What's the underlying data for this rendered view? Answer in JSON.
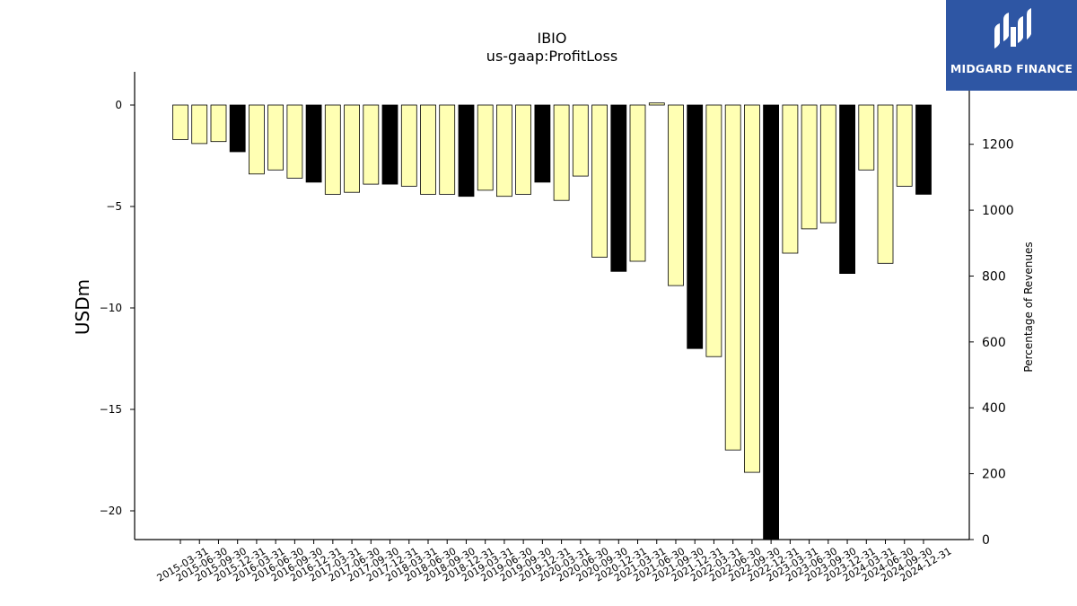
{
  "brand": {
    "name": "MIDGARD FINANCE",
    "color": "#2e56a4"
  },
  "chart_data": {
    "type": "bar",
    "title": "IBIO",
    "subtitle": "us-gaap:ProfitLoss",
    "ylabel": "USDm",
    "y2label": "Percentage of Revenues",
    "ylim": [
      -21.4,
      1.6
    ],
    "y2lim": [
      0,
      1420
    ],
    "yticks": [
      0,
      -5,
      -10,
      -15,
      -20
    ],
    "y2ticks": [
      0,
      200,
      400,
      600,
      800,
      1000,
      1200
    ],
    "colors": {
      "quarter": "#ffffb3",
      "year_end": "#000000",
      "edge": "#000000"
    },
    "categories": [
      "2015-03-31",
      "2015-06-30",
      "2015-09-30",
      "2015-12-31",
      "2016-03-31",
      "2016-06-30",
      "2016-09-30",
      "2016-12-31",
      "2017-03-31",
      "2017-06-30",
      "2017-09-30",
      "2017-12-31",
      "2018-03-31",
      "2018-06-30",
      "2018-09-30",
      "2018-12-31",
      "2019-03-31",
      "2019-06-30",
      "2019-09-30",
      "2019-12-31",
      "2020-03-31",
      "2020-06-30",
      "2020-09-30",
      "2020-12-31",
      "2021-03-31",
      "2021-06-30",
      "2021-09-30",
      "2021-12-31",
      "2022-03-31",
      "2022-06-30",
      "2022-09-30",
      "2022-12-31",
      "2023-03-31",
      "2023-06-30",
      "2023-09-30",
      "2023-12-31",
      "2024-03-31",
      "2024-06-30",
      "2024-09-30",
      "2024-12-31"
    ],
    "values": [
      -1.7,
      -1.9,
      -1.8,
      -2.3,
      -3.4,
      -3.2,
      -3.6,
      -3.8,
      -4.4,
      -4.3,
      -3.9,
      -3.9,
      -4.0,
      -4.4,
      -4.4,
      -4.5,
      -4.2,
      -4.5,
      -4.4,
      -3.8,
      -4.7,
      -3.5,
      -7.5,
      -8.2,
      -7.7,
      0.1,
      -8.9,
      -12.0,
      -12.4,
      -17.0,
      -18.1,
      -21.4,
      -7.3,
      -6.1,
      -5.8,
      -8.3,
      -3.2,
      -7.8,
      -4.0,
      -4.4
    ],
    "year_end": [
      false,
      false,
      false,
      true,
      false,
      false,
      false,
      true,
      false,
      false,
      false,
      true,
      false,
      false,
      false,
      true,
      false,
      false,
      false,
      true,
      false,
      false,
      false,
      true,
      false,
      false,
      false,
      true,
      false,
      false,
      false,
      true,
      false,
      false,
      false,
      true,
      false,
      false,
      false,
      true
    ],
    "series2": {
      "name": "Percentage of Revenues",
      "type": "line",
      "values": [
        null,
        null,
        null,
        null,
        null,
        null,
        null,
        null,
        null,
        null,
        null,
        null,
        null,
        null,
        null,
        null,
        null,
        null,
        null,
        null,
        null,
        null,
        null,
        null,
        null,
        null,
        null,
        null,
        null,
        null,
        null,
        null,
        null,
        null,
        null,
        null,
        null,
        null,
        null,
        null
      ]
    }
  }
}
